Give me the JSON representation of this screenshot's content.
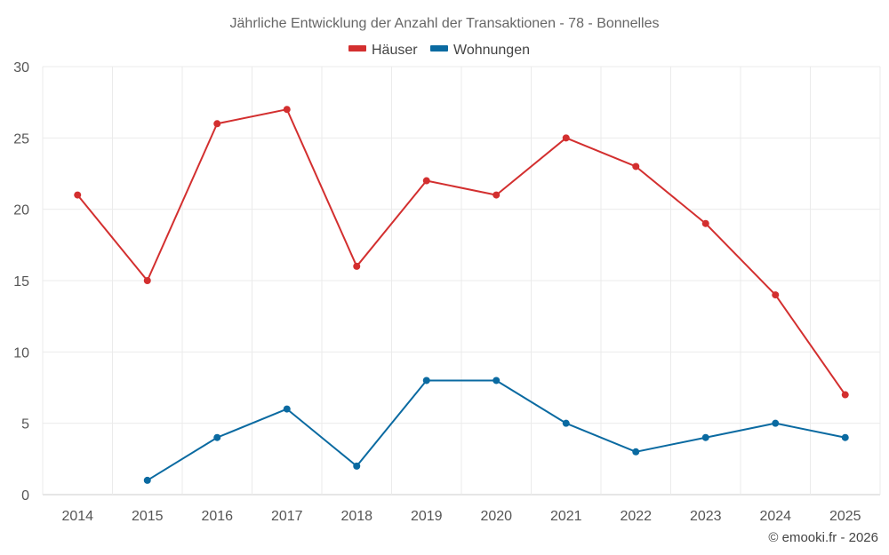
{
  "chart_data": {
    "type": "line",
    "title": "Jährliche Entwicklung der Anzahl der Transaktionen - 78 - Bonnelles",
    "categories": [
      "2014",
      "2015",
      "2016",
      "2017",
      "2018",
      "2019",
      "2020",
      "2021",
      "2022",
      "2023",
      "2024",
      "2025"
    ],
    "ylim": [
      0,
      30
    ],
    "yticks": [
      0,
      5,
      10,
      15,
      20,
      25,
      30
    ],
    "grid": true,
    "legend_position": "top-center",
    "series": [
      {
        "name": "Häuser",
        "color": "#d32f2f",
        "values": [
          21,
          15,
          26,
          27,
          16,
          22,
          21,
          25,
          23,
          19,
          14,
          7
        ]
      },
      {
        "name": "Wohnungen",
        "color": "#0a6aa1",
        "values": [
          null,
          1,
          4,
          6,
          2,
          8,
          8,
          5,
          3,
          4,
          5,
          4
        ]
      }
    ],
    "credit": "© emooki.fr - 2026"
  }
}
